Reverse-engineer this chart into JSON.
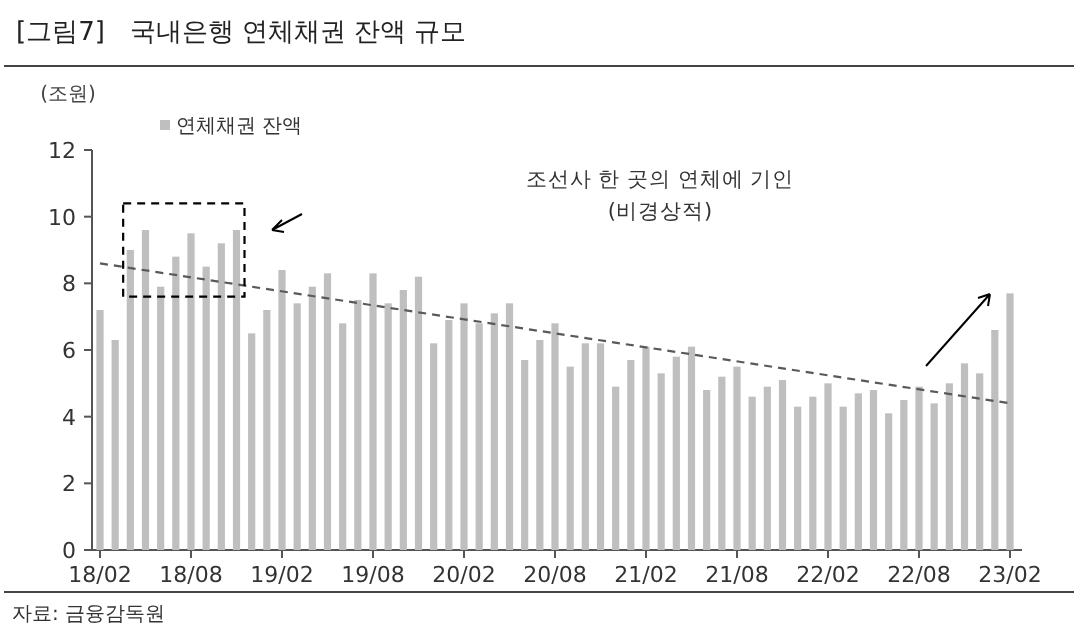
{
  "chart_data": {
    "type": "bar",
    "title": "[그림7]   국내은행 연체채권 잔액 규모",
    "ylabel": "(조원)",
    "categories": [
      "18/02",
      null,
      null,
      null,
      null,
      null,
      "18/08",
      null,
      null,
      null,
      null,
      null,
      "19/02",
      null,
      null,
      null,
      null,
      null,
      "19/08",
      null,
      null,
      null,
      null,
      null,
      "20/02",
      null,
      null,
      null,
      null,
      null,
      "20/08",
      null,
      null,
      null,
      null,
      null,
      "21/02",
      null,
      null,
      null,
      null,
      null,
      "21/08",
      null,
      null,
      null,
      null,
      null,
      "22/02",
      null,
      null,
      null,
      null,
      null,
      "22/08",
      null,
      null,
      null,
      null,
      null,
      "23/02"
    ],
    "series": [
      {
        "name": "연체채권 잔액",
        "color": "#bfbfbf",
        "values": [
          7.2,
          6.3,
          9.0,
          9.6,
          7.9,
          8.8,
          9.5,
          8.5,
          9.2,
          9.6,
          6.5,
          7.2,
          8.4,
          7.4,
          7.9,
          8.3,
          6.8,
          7.5,
          8.3,
          7.4,
          7.8,
          8.2,
          6.2,
          6.9,
          7.4,
          6.8,
          7.1,
          7.4,
          5.7,
          6.3,
          6.8,
          5.5,
          6.2,
          6.2,
          4.9,
          5.7,
          6.1,
          5.3,
          5.8,
          6.1,
          4.8,
          5.2,
          5.5,
          4.6,
          4.9,
          5.1,
          4.3,
          4.6,
          5.0,
          4.3,
          4.7,
          4.8,
          4.1,
          4.5,
          4.9,
          4.4,
          5.0,
          5.6,
          5.3,
          6.6,
          7.7
        ]
      },
      {
        "type": "line",
        "color": "#595959",
        "line_style": "dashed",
        "x": [
          "18/02",
          "23/02"
        ],
        "values": [
          8.6,
          4.4
        ]
      }
    ],
    "ylim": [
      0,
      12
    ],
    "yticks": [
      0,
      2,
      4,
      6,
      8,
      10,
      12
    ],
    "legend": "top left",
    "annotations": [
      "조선사 한 곳의 연체에 기인",
      "(비경상적)",
      "자료: 금융감독원"
    ]
  }
}
